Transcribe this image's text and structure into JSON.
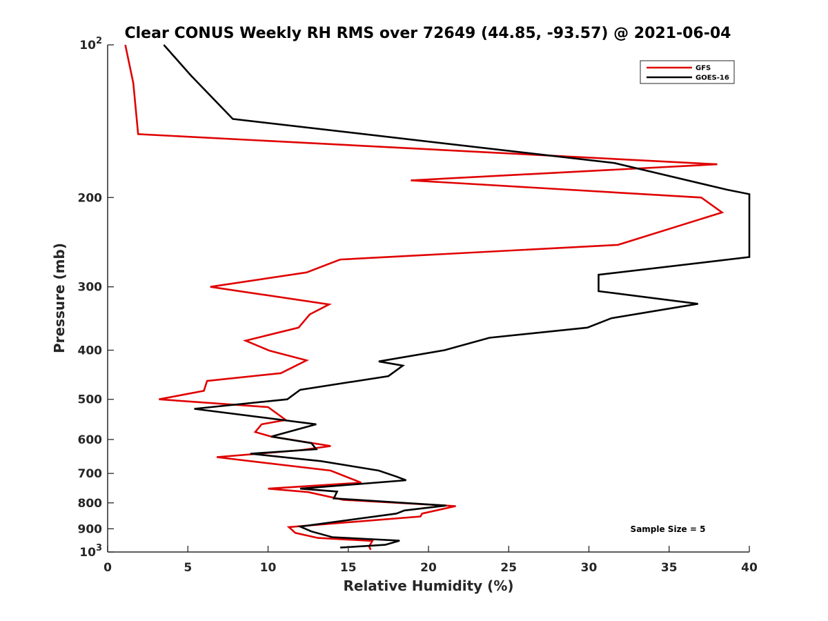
{
  "chart_data": {
    "type": "line",
    "title": "Clear CONUS Weekly RH RMS over 72649 (44.85, -93.57) @ 2021-06-04",
    "xlabel": "Relative Humidity (%)",
    "ylabel": "Pressure (mb)",
    "xlim": [
      0,
      40
    ],
    "ylim": [
      100,
      1000
    ],
    "yscale": "log",
    "y_reversed": true,
    "grid": false,
    "legend_position": "top-right",
    "x_ticks": [
      "0",
      "5",
      "10",
      "15",
      "20",
      "25",
      "30",
      "35",
      "40"
    ],
    "y_ticks": [
      {
        "value": 100,
        "base": "10",
        "exp": "2"
      },
      {
        "value": 200,
        "label": "200"
      },
      {
        "value": 300,
        "label": "300"
      },
      {
        "value": 400,
        "label": "400"
      },
      {
        "value": 500,
        "label": "500"
      },
      {
        "value": 600,
        "label": "600"
      },
      {
        "value": 700,
        "label": "700"
      },
      {
        "value": 800,
        "label": "800"
      },
      {
        "value": 900,
        "label": "900"
      },
      {
        "value": 1000,
        "base": "10",
        "exp": "3"
      }
    ],
    "annotation": "Sample Size = 5",
    "series": [
      {
        "name": "GFS",
        "color": "#e00000",
        "points": [
          [
            1.1,
            100
          ],
          [
            1.6,
            119
          ],
          [
            1.9,
            150
          ],
          [
            38.0,
            172
          ],
          [
            18.9,
            185
          ],
          [
            37.0,
            200
          ],
          [
            38.3,
            214
          ],
          [
            31.8,
            248
          ],
          [
            14.5,
            265
          ],
          [
            12.4,
            281
          ],
          [
            6.4,
            300
          ],
          [
            13.8,
            325
          ],
          [
            12.6,
            340
          ],
          [
            11.9,
            361
          ],
          [
            8.6,
            383
          ],
          [
            10.1,
            401
          ],
          [
            12.4,
            419
          ],
          [
            10.8,
            444
          ],
          [
            6.2,
            460
          ],
          [
            6.0,
            481
          ],
          [
            3.2,
            500
          ],
          [
            10.0,
            518
          ],
          [
            11.1,
            549
          ],
          [
            9.6,
            560
          ],
          [
            9.2,
            580
          ],
          [
            10.2,
            592
          ],
          [
            13.9,
            618
          ],
          [
            12.0,
            630
          ],
          [
            6.8,
            650
          ],
          [
            13.9,
            691
          ],
          [
            15.8,
            730
          ],
          [
            10.0,
            750
          ],
          [
            12.5,
            762
          ],
          [
            14.7,
            789
          ],
          [
            21.7,
            812
          ],
          [
            19.6,
            840
          ],
          [
            19.5,
            851
          ],
          [
            11.3,
            893
          ],
          [
            11.7,
            917
          ],
          [
            13.1,
            938
          ],
          [
            16.5,
            951
          ],
          [
            16.3,
            975
          ],
          [
            16.4,
            990
          ]
        ]
      },
      {
        "name": "GOES-16",
        "color": "#000000",
        "points": [
          [
            3.5,
            100
          ],
          [
            5.2,
            115
          ],
          [
            7.8,
            140
          ],
          [
            31.6,
            171
          ],
          [
            38.6,
            193
          ],
          [
            40.0,
            197
          ],
          [
            40.0,
            262
          ],
          [
            37.4,
            268
          ],
          [
            30.6,
            284
          ],
          [
            30.6,
            306
          ],
          [
            36.8,
            324
          ],
          [
            31.4,
            346
          ],
          [
            29.9,
            361
          ],
          [
            23.8,
            378
          ],
          [
            21.0,
            400
          ],
          [
            16.9,
            421
          ],
          [
            18.4,
            429
          ],
          [
            17.5,
            450
          ],
          [
            12.0,
            479
          ],
          [
            11.2,
            500
          ],
          [
            5.4,
            522
          ],
          [
            13.0,
            560
          ],
          [
            10.2,
            592
          ],
          [
            12.7,
            610
          ],
          [
            13.0,
            627
          ],
          [
            8.9,
            640
          ],
          [
            13.3,
            662
          ],
          [
            16.9,
            691
          ],
          [
            18.0,
            710
          ],
          [
            18.6,
            722
          ],
          [
            12.0,
            750
          ],
          [
            14.3,
            760
          ],
          [
            14.1,
            784
          ],
          [
            21.1,
            810
          ],
          [
            18.5,
            828
          ],
          [
            18.0,
            840
          ],
          [
            12.0,
            891
          ],
          [
            12.7,
            911
          ],
          [
            14.0,
            935
          ],
          [
            18.2,
            950
          ],
          [
            17.3,
            968
          ],
          [
            14.5,
            980
          ]
        ]
      }
    ]
  }
}
